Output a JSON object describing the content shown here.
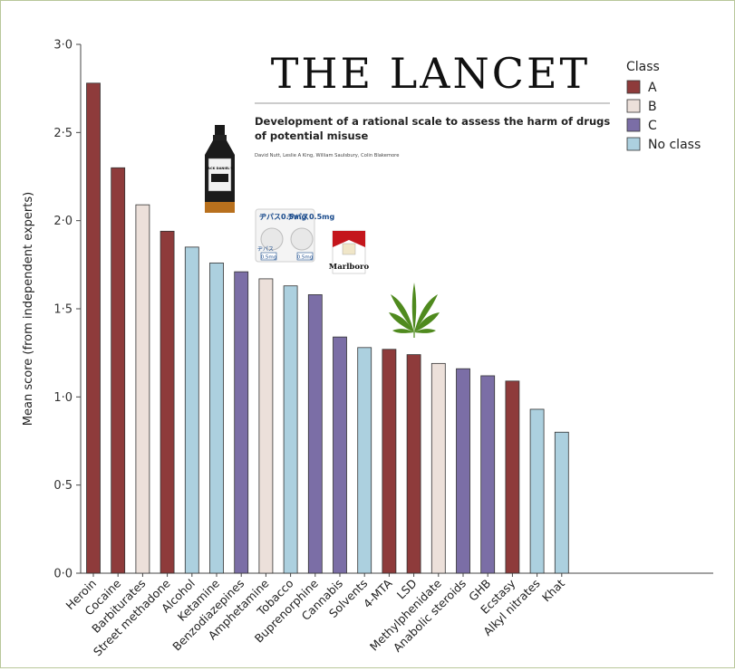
{
  "header": {
    "journal": "THE LANCET",
    "paper_title_line1": "Development of a rational scale to assess the harm of drugs",
    "paper_title_line2": "of potential misuse",
    "authors": "David Nutt, Leslie A King, William Saulsbury, Colin Blakemore"
  },
  "pictures": {
    "bottle_label": "JACK DANIEL'S",
    "pill_text_1": "ヂパス0.5mg",
    "pill_text_2": "ヂパス",
    "pill_text_3": "0.5mg",
    "pack_brand": "Marlboro"
  },
  "colors": {
    "A": "#8e3b3b",
    "B": "#ece0da",
    "C": "#7b6ea6",
    "No class": "#acd0df",
    "bar_edge": "#333333",
    "frame": "#b8c79a"
  },
  "chart_data": {
    "type": "bar",
    "ylabel": "Mean score (from independent experts)",
    "xlabel": "",
    "ylim": [
      0,
      3.0
    ],
    "yticks": [
      "0·0",
      "0·5",
      "1·0",
      "1·5",
      "2·0",
      "2·5",
      "3·0"
    ],
    "ytick_values": [
      0,
      0.5,
      1.0,
      1.5,
      2.0,
      2.5,
      3.0
    ],
    "grid": false,
    "legend_position": "top-right",
    "legend_title": "Class",
    "legend": [
      {
        "name": "A",
        "class": "A"
      },
      {
        "name": "B",
        "class": "B"
      },
      {
        "name": "C",
        "class": "C"
      },
      {
        "name": "No class",
        "class": "No class"
      }
    ],
    "categories": [
      "Heroin",
      "Cocaine",
      "Barbiturates",
      "Street methadone",
      "Alcohol",
      "Ketamine",
      "Benzodiazepines",
      "Amphetamine",
      "Tobacco",
      "Buprenorphine",
      "Cannabis",
      "Solvents",
      "4-MTA",
      "LSD",
      "Methylphenidate",
      "Anabolic steroids",
      "GHB",
      "Ecstasy",
      "Alkyl nitrates",
      "Khat"
    ],
    "values": [
      2.78,
      2.3,
      2.09,
      1.94,
      1.85,
      1.76,
      1.71,
      1.67,
      1.63,
      1.58,
      1.34,
      1.28,
      1.27,
      1.24,
      1.19,
      1.16,
      1.12,
      1.09,
      0.93,
      0.8
    ],
    "classes": [
      "A",
      "A",
      "B",
      "A",
      "No class",
      "No class",
      "C",
      "B",
      "No class",
      "C",
      "C",
      "No class",
      "A",
      "A",
      "B",
      "C",
      "C",
      "A",
      "No class",
      "No class"
    ]
  }
}
